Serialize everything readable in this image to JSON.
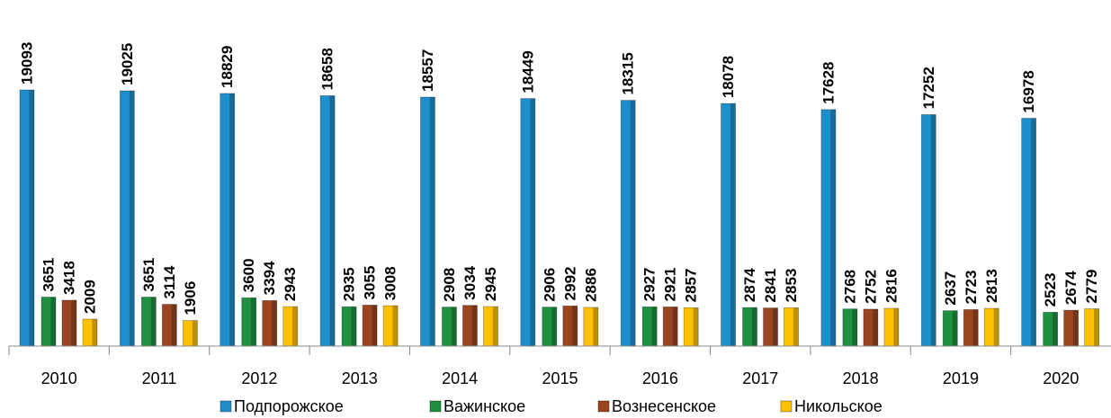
{
  "chart_data": {
    "type": "bar",
    "categories": [
      "2010",
      "2011",
      "2012",
      "2013",
      "2014",
      "2015",
      "2016",
      "2017",
      "2018",
      "2019",
      "2020"
    ],
    "series": [
      {
        "name": "Подпорожское",
        "color": "#1f8fcc",
        "values": [
          19093,
          19025,
          18829,
          18658,
          18557,
          18449,
          18315,
          18078,
          17628,
          17252,
          16978
        ]
      },
      {
        "name": "Важинское",
        "color": "#1e9040",
        "values": [
          3651,
          3651,
          3600,
          2935,
          2908,
          2906,
          2927,
          2874,
          2768,
          2637,
          2523
        ]
      },
      {
        "name": "Вознесенское",
        "color": "#9a4420",
        "values": [
          3418,
          3114,
          3394,
          3055,
          3034,
          2992,
          2921,
          2841,
          2752,
          2723,
          2674
        ]
      },
      {
        "name": "Никольское",
        "color": "#ffc000",
        "values": [
          2009,
          1906,
          2943,
          3008,
          2945,
          2886,
          2857,
          2853,
          2816,
          2813,
          2779
        ]
      }
    ]
  }
}
